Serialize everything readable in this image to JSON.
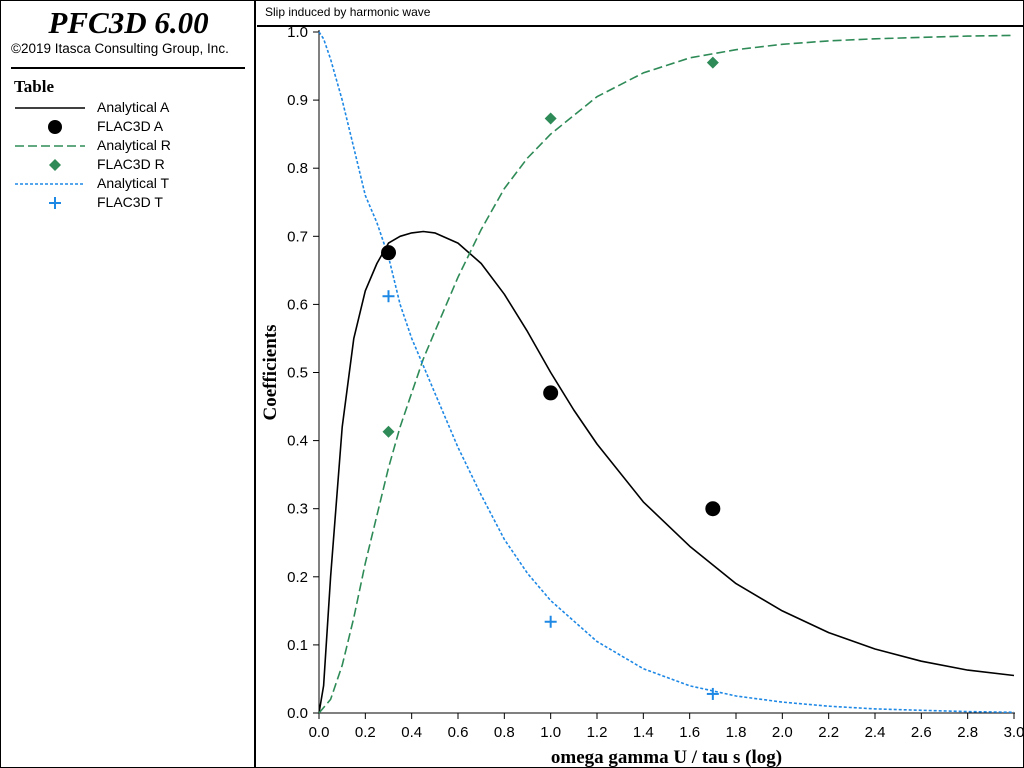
{
  "app": {
    "title": "PFC3D 6.00",
    "copyright": "©2019 Itasca Consulting Group, Inc."
  },
  "legend": {
    "title": "Table",
    "items": [
      {
        "label": "Analytical A",
        "symbol": "solid-line",
        "color": "#000000"
      },
      {
        "label": "FLAC3D A",
        "symbol": "circle-marker",
        "color": "#000000"
      },
      {
        "label": "Analytical R",
        "symbol": "dashed-line",
        "color": "#2e8b57"
      },
      {
        "label": "FLAC3D R",
        "symbol": "diamond-marker",
        "color": "#2e8b57"
      },
      {
        "label": "Analytical T",
        "symbol": "dotted-line",
        "color": "#1e88e5"
      },
      {
        "label": "FLAC3D T",
        "symbol": "plus-marker",
        "color": "#1e88e5"
      }
    ]
  },
  "chart_data": {
    "type": "line",
    "title": "Slip induced by harmonic wave",
    "xlabel": "omega gamma U / tau  s (log)",
    "ylabel": "Coefficients",
    "xlim": [
      0.0,
      3.0
    ],
    "ylim": [
      0.0,
      1.0
    ],
    "xticks": [
      "0.0",
      "0.2",
      "0.4",
      "0.6",
      "0.8",
      "1.0",
      "1.2",
      "1.4",
      "1.6",
      "1.8",
      "2.0",
      "2.2",
      "2.4",
      "2.6",
      "2.8",
      "3.0"
    ],
    "yticks": [
      "0.0",
      "0.1",
      "0.2",
      "0.3",
      "0.4",
      "0.5",
      "0.6",
      "0.7",
      "0.8",
      "0.9",
      "1.0"
    ],
    "grid": false,
    "legend_position": "left panel",
    "series": [
      {
        "name": "Analytical A",
        "kind": "line",
        "style": "solid",
        "color": "#000000",
        "x": [
          0.0,
          0.02,
          0.05,
          0.1,
          0.15,
          0.2,
          0.25,
          0.3,
          0.35,
          0.4,
          0.45,
          0.5,
          0.6,
          0.7,
          0.8,
          0.9,
          1.0,
          1.1,
          1.2,
          1.4,
          1.6,
          1.8,
          2.0,
          2.2,
          2.4,
          2.6,
          2.8,
          3.0
        ],
        "y": [
          0.0,
          0.04,
          0.2,
          0.42,
          0.55,
          0.62,
          0.66,
          0.69,
          0.7,
          0.705,
          0.707,
          0.705,
          0.69,
          0.66,
          0.615,
          0.56,
          0.5,
          0.445,
          0.395,
          0.31,
          0.245,
          0.19,
          0.15,
          0.118,
          0.094,
          0.076,
          0.063,
          0.055
        ]
      },
      {
        "name": "FLAC3D A",
        "kind": "scatter",
        "marker": "circle",
        "color": "#000000",
        "x": [
          0.3,
          1.0,
          1.7
        ],
        "y": [
          0.676,
          0.47,
          0.3
        ]
      },
      {
        "name": "Analytical R",
        "kind": "line",
        "style": "dashed",
        "color": "#2e8b57",
        "x": [
          0.0,
          0.05,
          0.1,
          0.15,
          0.2,
          0.25,
          0.3,
          0.35,
          0.4,
          0.45,
          0.5,
          0.6,
          0.7,
          0.8,
          0.9,
          1.0,
          1.2,
          1.4,
          1.6,
          1.8,
          2.0,
          2.2,
          2.4,
          2.6,
          2.8,
          3.0
        ],
        "y": [
          0.0,
          0.02,
          0.07,
          0.14,
          0.22,
          0.29,
          0.36,
          0.42,
          0.47,
          0.52,
          0.56,
          0.64,
          0.71,
          0.77,
          0.815,
          0.85,
          0.905,
          0.94,
          0.962,
          0.974,
          0.982,
          0.987,
          0.99,
          0.992,
          0.994,
          0.995
        ]
      },
      {
        "name": "FLAC3D R",
        "kind": "scatter",
        "marker": "diamond",
        "color": "#2e8b57",
        "x": [
          0.3,
          1.0,
          1.7
        ],
        "y": [
          0.413,
          0.873,
          0.955
        ]
      },
      {
        "name": "Analytical T",
        "kind": "line",
        "style": "dotted",
        "color": "#1e88e5",
        "x": [
          0.0,
          0.02,
          0.05,
          0.1,
          0.15,
          0.2,
          0.25,
          0.3,
          0.35,
          0.4,
          0.45,
          0.5,
          0.6,
          0.7,
          0.8,
          0.9,
          1.0,
          1.2,
          1.4,
          1.6,
          1.8,
          2.0,
          2.2,
          2.4,
          2.6,
          2.8,
          3.0
        ],
        "y": [
          1.0,
          0.99,
          0.96,
          0.9,
          0.83,
          0.76,
          0.72,
          0.67,
          0.6,
          0.55,
          0.51,
          0.47,
          0.39,
          0.32,
          0.255,
          0.205,
          0.165,
          0.105,
          0.065,
          0.04,
          0.025,
          0.016,
          0.01,
          0.006,
          0.004,
          0.002,
          0.001
        ]
      },
      {
        "name": "FLAC3D T",
        "kind": "scatter",
        "marker": "plus",
        "color": "#1e88e5",
        "x": [
          0.3,
          1.0,
          1.7
        ],
        "y": [
          0.612,
          0.134,
          0.028
        ]
      }
    ]
  }
}
